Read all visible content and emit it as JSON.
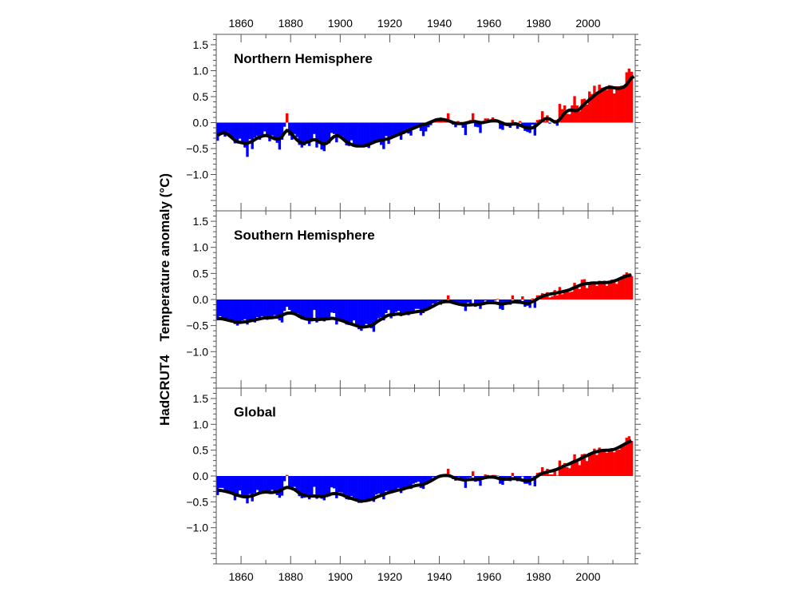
{
  "chart_data": {
    "type": "bar",
    "ylabel_prefix": "HadCRUT4",
    "ylabel": "Temperature anomaly (°C)",
    "xlabel": "",
    "xlim": [
      1850,
      2019
    ],
    "x_ticks": [
      1860,
      1880,
      1900,
      1920,
      1940,
      1960,
      1980,
      2000
    ],
    "x_tick_labels": [
      "1860",
      "1880",
      "1900",
      "1920",
      "1940",
      "1960",
      "1980",
      "2000"
    ],
    "ylim": [
      -1.7,
      1.7
    ],
    "y_ticks": [
      1.5,
      1.0,
      0.5,
      0.0,
      -0.5,
      -1.0
    ],
    "y_tick_labels": [
      "1.5",
      "1.0",
      "0.5",
      "0.0",
      "−0.5",
      "−1.0"
    ],
    "grid": false,
    "colors": {
      "positive": "#ff0000",
      "negative": "#0000ff",
      "smooth": "#000000"
    },
    "start_year": 1850,
    "panels": [
      {
        "title": "Northern Hemisphere",
        "annual": [
          -0.35,
          -0.21,
          -0.22,
          -0.27,
          -0.19,
          -0.28,
          -0.29,
          -0.4,
          -0.38,
          -0.31,
          -0.38,
          -0.48,
          -0.66,
          -0.32,
          -0.51,
          -0.29,
          -0.26,
          -0.33,
          -0.28,
          -0.17,
          -0.25,
          -0.36,
          -0.25,
          -0.29,
          -0.39,
          -0.52,
          -0.33,
          -0.08,
          0.18,
          -0.25,
          -0.33,
          -0.22,
          -0.28,
          -0.43,
          -0.48,
          -0.44,
          -0.36,
          -0.45,
          -0.35,
          -0.22,
          -0.48,
          -0.41,
          -0.52,
          -0.55,
          -0.42,
          -0.4,
          -0.2,
          -0.22,
          -0.38,
          -0.25,
          -0.26,
          -0.34,
          -0.44,
          -0.45,
          -0.34,
          -0.45,
          -0.44,
          -0.44,
          -0.46,
          -0.46,
          -0.45,
          -0.49,
          -0.38,
          -0.4,
          -0.34,
          -0.33,
          -0.43,
          -0.51,
          -0.26,
          -0.41,
          -0.3,
          -0.28,
          -0.23,
          -0.25,
          -0.33,
          -0.22,
          -0.16,
          -0.21,
          -0.25,
          -0.08,
          -0.08,
          -0.04,
          -0.16,
          -0.26,
          -0.17,
          -0.09,
          -0.05,
          0.05,
          0.07,
          0.06,
          0.1,
          0.03,
          0.05,
          0.18,
          0.04,
          -0.04,
          -0.09,
          0.03,
          0.0,
          -0.1,
          -0.24,
          -0.02,
          0.05,
          0.18,
          -0.08,
          -0.09,
          -0.2,
          0.0,
          0.08,
          0.08,
          0.03,
          0.1,
          0.05,
          0.01,
          -0.12,
          -0.14,
          -0.04,
          -0.01,
          -0.1,
          0.05,
          -0.06,
          -0.12,
          0.03,
          -0.08,
          -0.16,
          -0.18,
          -0.2,
          -0.04,
          -0.25,
          0.05,
          0.06,
          0.22,
          0.03,
          0.14,
          -0.02,
          0.0,
          0.05,
          -0.06,
          0.36,
          0.26,
          0.33,
          0.17,
          0.16,
          0.33,
          0.51,
          0.33,
          0.22,
          0.45,
          0.46,
          0.35,
          0.6,
          0.55,
          0.71,
          0.56,
          0.73,
          0.67,
          0.68,
          0.63,
          0.72,
          0.67,
          0.56,
          0.7,
          0.7,
          0.71,
          0.69,
          0.97,
          1.04,
          0.98
        ],
        "smooth": [
          -0.25,
          -0.22,
          -0.2,
          -0.2,
          -0.22,
          -0.26,
          -0.3,
          -0.34,
          -0.37,
          -0.38,
          -0.39,
          -0.4,
          -0.4,
          -0.38,
          -0.36,
          -0.33,
          -0.3,
          -0.28,
          -0.26,
          -0.25,
          -0.25,
          -0.27,
          -0.29,
          -0.31,
          -0.32,
          -0.31,
          -0.27,
          -0.2,
          -0.15,
          -0.17,
          -0.22,
          -0.28,
          -0.33,
          -0.37,
          -0.39,
          -0.39,
          -0.38,
          -0.36,
          -0.34,
          -0.33,
          -0.34,
          -0.37,
          -0.4,
          -0.41,
          -0.4,
          -0.36,
          -0.31,
          -0.27,
          -0.25,
          -0.26,
          -0.29,
          -0.33,
          -0.37,
          -0.4,
          -0.42,
          -0.44,
          -0.45,
          -0.45,
          -0.45,
          -0.45,
          -0.44,
          -0.42,
          -0.4,
          -0.38,
          -0.36,
          -0.35,
          -0.34,
          -0.33,
          -0.32,
          -0.31,
          -0.29,
          -0.27,
          -0.25,
          -0.23,
          -0.21,
          -0.19,
          -0.17,
          -0.15,
          -0.13,
          -0.11,
          -0.09,
          -0.07,
          -0.05,
          -0.04,
          -0.03,
          -0.01,
          0.01,
          0.03,
          0.05,
          0.06,
          0.06,
          0.06,
          0.05,
          0.04,
          0.02,
          0.0,
          -0.01,
          -0.02,
          -0.02,
          -0.02,
          -0.01,
          0.0,
          0.01,
          0.02,
          0.02,
          0.01,
          0.0,
          0.0,
          0.01,
          0.02,
          0.03,
          0.04,
          0.04,
          0.03,
          0.01,
          -0.01,
          -0.03,
          -0.04,
          -0.04,
          -0.03,
          -0.02,
          -0.03,
          -0.05,
          -0.07,
          -0.09,
          -0.1,
          -0.11,
          -0.1,
          -0.08,
          -0.04,
          0.0,
          0.04,
          0.07,
          0.08,
          0.07,
          0.04,
          0.01,
          0.02,
          0.06,
          0.12,
          0.18,
          0.22,
          0.24,
          0.24,
          0.23,
          0.23,
          0.26,
          0.31,
          0.36,
          0.4,
          0.44,
          0.48,
          0.52,
          0.56,
          0.59,
          0.62,
          0.65,
          0.67,
          0.68,
          0.68,
          0.67,
          0.66,
          0.66,
          0.67,
          0.69,
          0.73,
          0.8,
          0.86,
          0.89
        ]
      },
      {
        "title": "Southern Hemisphere",
        "annual": [
          -0.4,
          -0.32,
          -0.36,
          -0.38,
          -0.37,
          -0.38,
          -0.41,
          -0.47,
          -0.5,
          -0.47,
          -0.4,
          -0.38,
          -0.48,
          -0.4,
          -0.4,
          -0.44,
          -0.34,
          -0.38,
          -0.32,
          -0.35,
          -0.39,
          -0.34,
          -0.32,
          -0.3,
          -0.37,
          -0.4,
          -0.44,
          -0.22,
          -0.14,
          -0.2,
          -0.24,
          -0.25,
          -0.26,
          -0.35,
          -0.38,
          -0.38,
          -0.4,
          -0.47,
          -0.42,
          -0.2,
          -0.44,
          -0.39,
          -0.4,
          -0.42,
          -0.4,
          -0.38,
          -0.25,
          -0.26,
          -0.48,
          -0.38,
          -0.38,
          -0.4,
          -0.48,
          -0.49,
          -0.45,
          -0.4,
          -0.52,
          -0.57,
          -0.6,
          -0.54,
          -0.47,
          -0.49,
          -0.55,
          -0.62,
          -0.42,
          -0.36,
          -0.34,
          -0.4,
          -0.26,
          -0.2,
          -0.36,
          -0.32,
          -0.24,
          -0.22,
          -0.32,
          -0.29,
          -0.28,
          -0.3,
          -0.25,
          -0.22,
          -0.18,
          -0.18,
          -0.3,
          -0.26,
          -0.22,
          -0.2,
          -0.14,
          -0.08,
          -0.12,
          -0.04,
          -0.1,
          -0.02,
          -0.04,
          0.08,
          -0.04,
          -0.08,
          -0.1,
          -0.06,
          -0.12,
          -0.1,
          -0.22,
          -0.06,
          -0.1,
          0.0,
          -0.14,
          -0.1,
          -0.18,
          -0.1,
          -0.02,
          -0.04,
          -0.04,
          -0.06,
          -0.02,
          0.01,
          -0.18,
          -0.2,
          -0.08,
          -0.05,
          -0.1,
          0.08,
          -0.02,
          -0.08,
          -0.08,
          0.06,
          -0.14,
          -0.12,
          -0.16,
          0.02,
          -0.16,
          0.08,
          0.08,
          0.12,
          0.08,
          0.14,
          0.04,
          0.06,
          0.18,
          0.08,
          0.24,
          0.1,
          0.16,
          0.16,
          0.14,
          0.15,
          0.32,
          0.24,
          0.2,
          0.38,
          0.39,
          0.22,
          0.3,
          0.34,
          0.34,
          0.26,
          0.36,
          0.32,
          0.36,
          0.26,
          0.31,
          0.38,
          0.36,
          0.3,
          0.36,
          0.41,
          0.48,
          0.52,
          0.5,
          0.45
        ]
      },
      {
        "title": "Global",
        "annual": [
          -0.37,
          -0.23,
          -0.23,
          -0.27,
          -0.29,
          -0.3,
          -0.32,
          -0.47,
          -0.39,
          -0.28,
          -0.39,
          -0.43,
          -0.53,
          -0.35,
          -0.49,
          -0.33,
          -0.27,
          -0.34,
          -0.31,
          -0.28,
          -0.29,
          -0.34,
          -0.27,
          -0.32,
          -0.37,
          -0.42,
          -0.38,
          -0.1,
          0.02,
          -0.22,
          -0.26,
          -0.21,
          -0.27,
          -0.39,
          -0.43,
          -0.42,
          -0.38,
          -0.45,
          -0.39,
          -0.21,
          -0.44,
          -0.4,
          -0.44,
          -0.47,
          -0.41,
          -0.39,
          -0.22,
          -0.24,
          -0.43,
          -0.31,
          -0.32,
          -0.36,
          -0.45,
          -0.46,
          -0.39,
          -0.42,
          -0.48,
          -0.52,
          -0.52,
          -0.5,
          -0.46,
          -0.49,
          -0.46,
          -0.5,
          -0.36,
          -0.34,
          -0.38,
          -0.45,
          -0.29,
          -0.29,
          -0.33,
          -0.3,
          -0.26,
          -0.23,
          -0.33,
          -0.25,
          -0.21,
          -0.25,
          -0.25,
          -0.15,
          -0.13,
          -0.11,
          -0.23,
          -0.25,
          -0.17,
          -0.14,
          -0.1,
          -0.02,
          -0.03,
          0.01,
          0.0,
          0.02,
          0.0,
          0.14,
          0.01,
          -0.06,
          -0.09,
          -0.02,
          -0.06,
          -0.1,
          -0.23,
          -0.04,
          -0.03,
          0.09,
          -0.11,
          -0.1,
          -0.19,
          -0.05,
          0.03,
          0.02,
          -0.01,
          0.02,
          0.02,
          0.01,
          -0.15,
          -0.17,
          -0.06,
          -0.03,
          -0.1,
          0.06,
          -0.04,
          -0.1,
          -0.05,
          -0.01,
          -0.15,
          -0.15,
          -0.18,
          -0.01,
          -0.2,
          0.06,
          0.07,
          0.17,
          0.05,
          0.14,
          0.03,
          0.03,
          0.12,
          0.01,
          0.3,
          0.18,
          0.25,
          0.17,
          0.15,
          0.24,
          0.42,
          0.28,
          0.21,
          0.42,
          0.43,
          0.29,
          0.45,
          0.44,
          0.53,
          0.41,
          0.55,
          0.49,
          0.52,
          0.45,
          0.52,
          0.54,
          0.46,
          0.5,
          0.51,
          0.56,
          0.58,
          0.74,
          0.77,
          0.68
        ]
      }
    ]
  }
}
